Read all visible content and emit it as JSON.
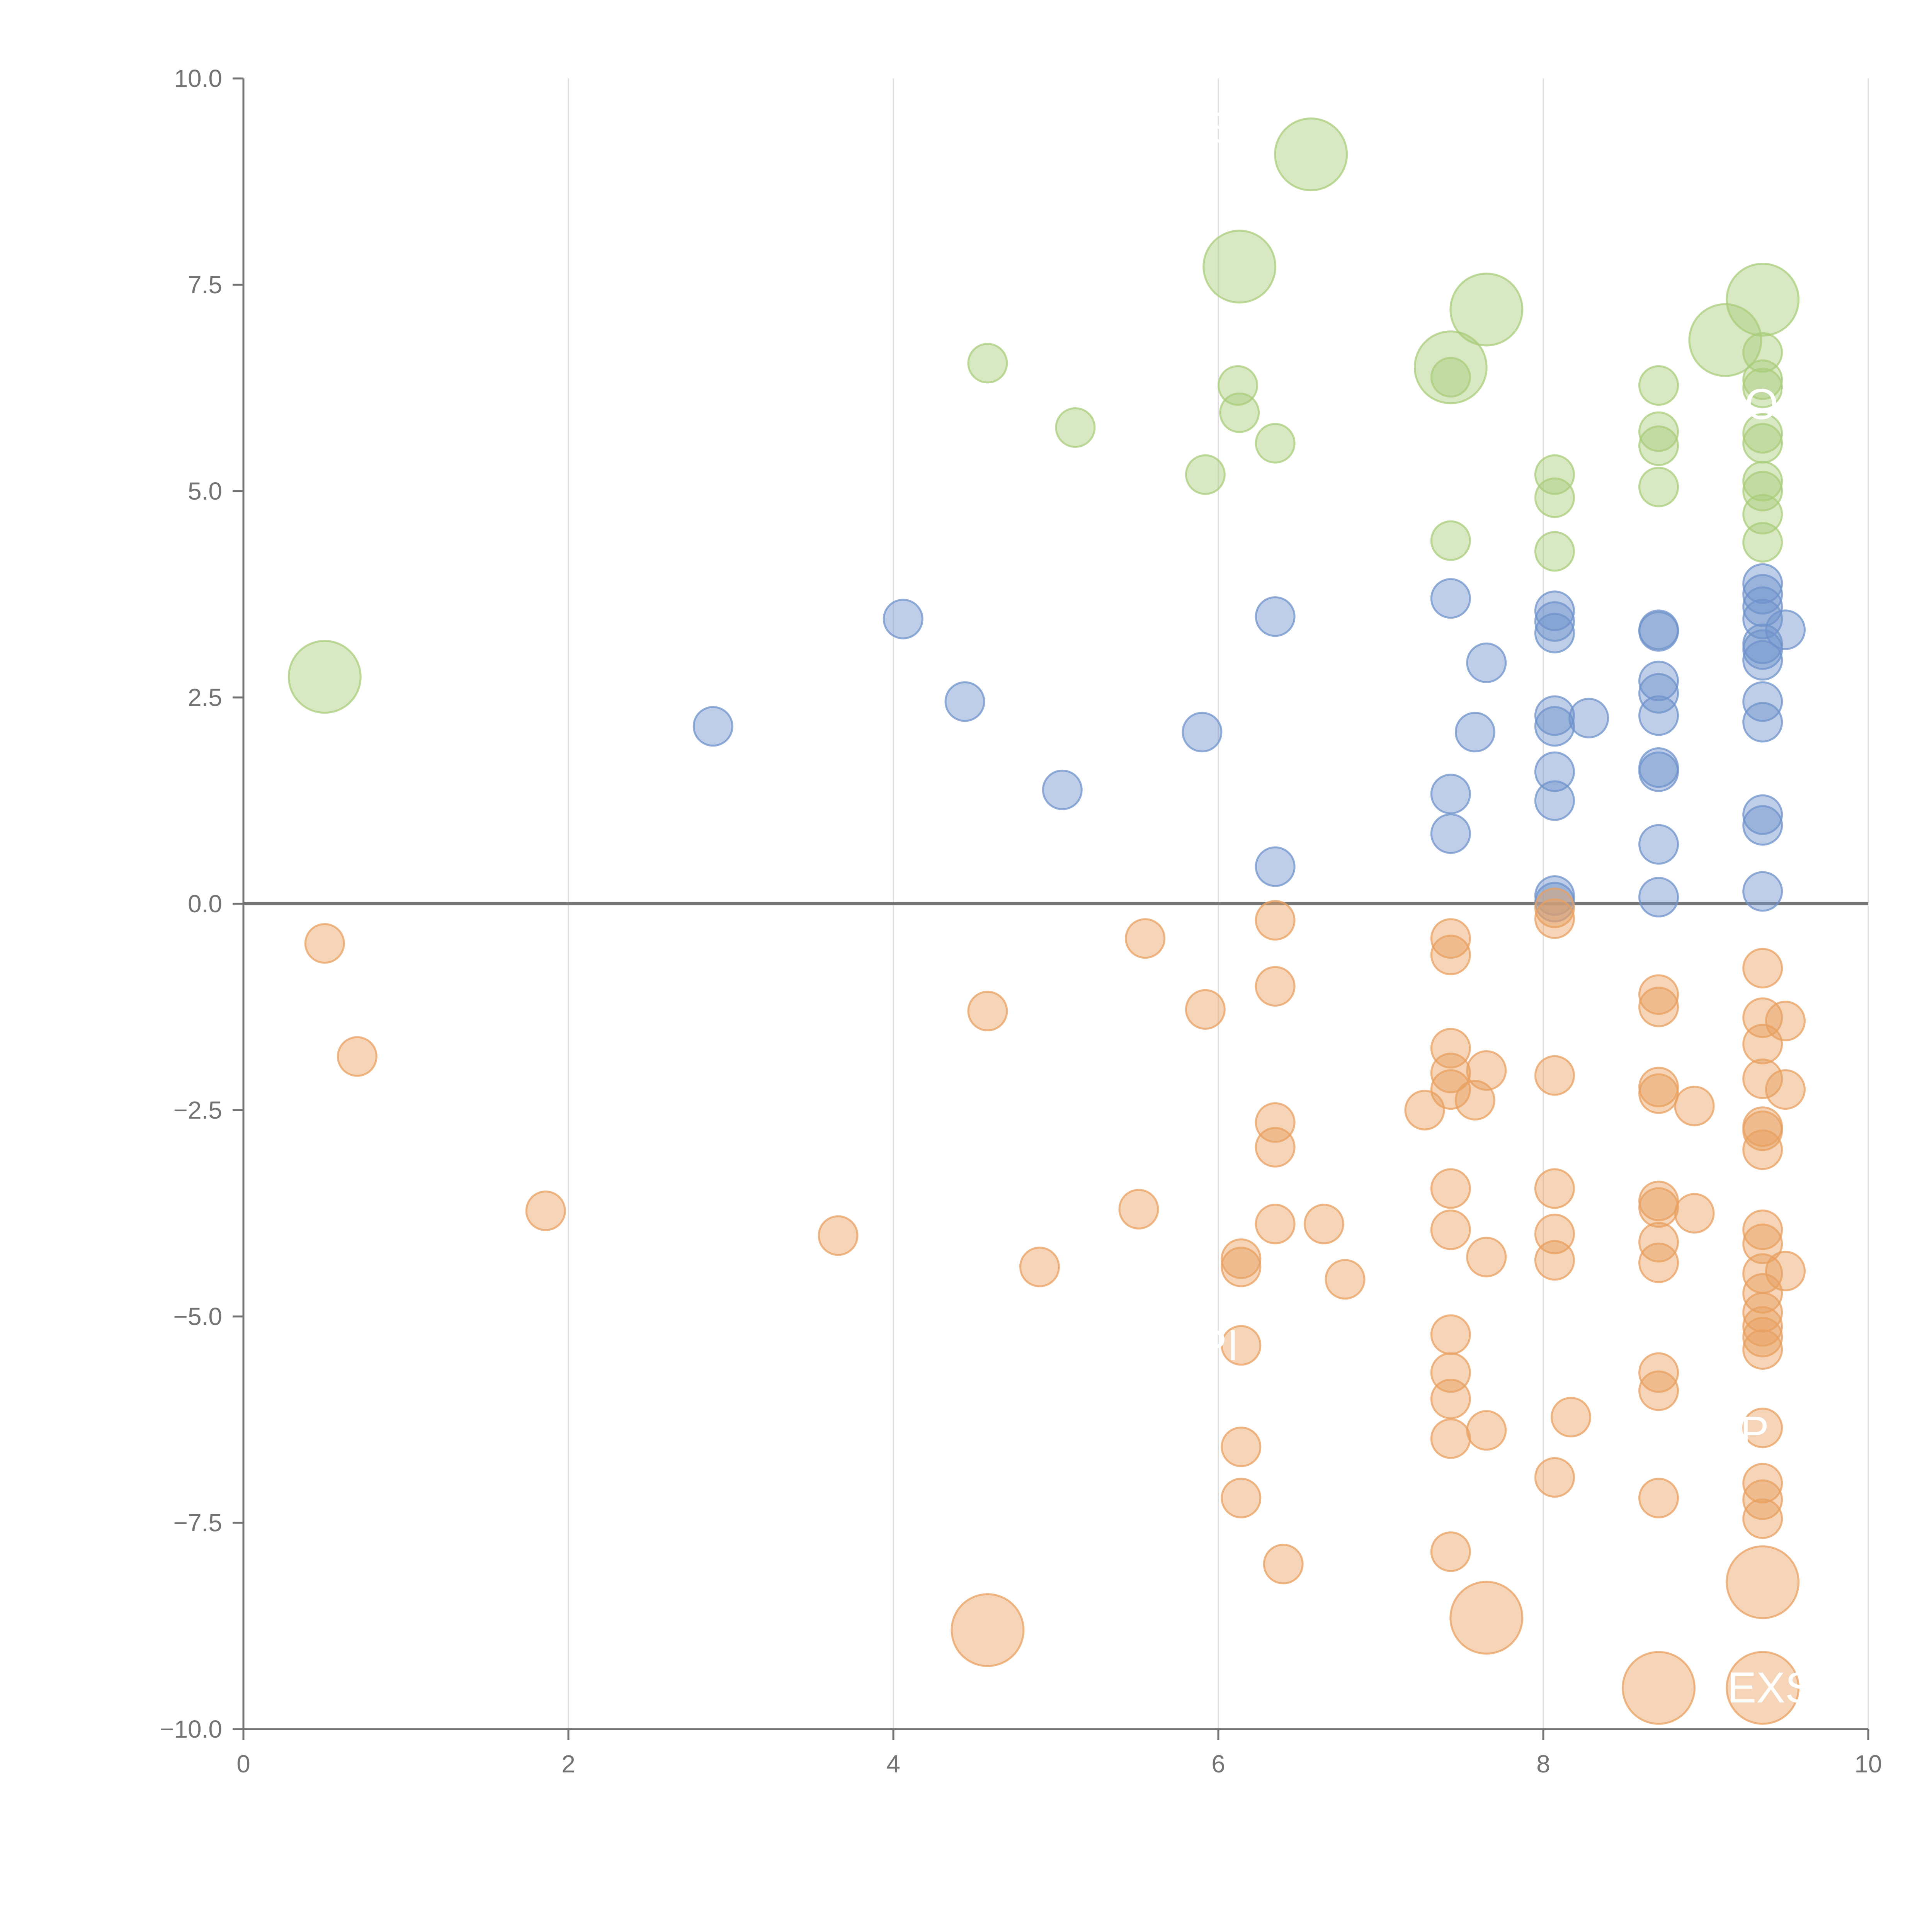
{
  "chart_data": {
    "type": "scatter",
    "title": "",
    "xlabel": "",
    "ylabel": "",
    "xlim": [
      0,
      10
    ],
    "ylim": [
      -10,
      10
    ],
    "x_ticks": [
      "0",
      "2",
      "4",
      "6",
      "8",
      "10"
    ],
    "y_ticks": [
      "−10.0",
      "−7.5",
      "−5.0",
      "−2.5",
      "0.0",
      "2.5",
      "5.0",
      "7.5",
      "10.0"
    ],
    "x_tick_values": [
      0,
      2,
      4,
      6,
      8,
      10
    ],
    "y_tick_values": [
      -10,
      -7.5,
      -5,
      -2.5,
      0,
      2.5,
      5,
      7.5,
      10
    ],
    "grid": "vertical",
    "zero_line": true,
    "colors": {
      "green": "#a9cd7b",
      "blue": "#6f93cb",
      "orange": "#e8a060",
      "axis": "#737373",
      "grid": "#dddddd",
      "zero": "#777777"
    },
    "series": [
      {
        "name": "green",
        "color": "#a9cd7b",
        "points": [
          {
            "x": 0.5,
            "y": 2.75,
            "size": "large"
          },
          {
            "x": 6.57,
            "y": 9.08,
            "size": "large"
          },
          {
            "x": 6.13,
            "y": 7.72,
            "size": "large"
          },
          {
            "x": 7.65,
            "y": 7.2,
            "size": "large"
          },
          {
            "x": 7.43,
            "y": 6.5,
            "size": "large"
          },
          {
            "x": 9.35,
            "y": 7.32,
            "size": "large"
          },
          {
            "x": 9.12,
            "y": 6.83,
            "size": "large"
          },
          {
            "x": 4.58,
            "y": 6.55
          },
          {
            "x": 5.12,
            "y": 5.77
          },
          {
            "x": 5.92,
            "y": 5.2
          },
          {
            "x": 6.12,
            "y": 6.28
          },
          {
            "x": 6.13,
            "y": 5.95
          },
          {
            "x": 6.35,
            "y": 5.58
          },
          {
            "x": 7.43,
            "y": 6.38
          },
          {
            "x": 7.43,
            "y": 4.4
          },
          {
            "x": 8.07,
            "y": 5.2
          },
          {
            "x": 8.07,
            "y": 4.92
          },
          {
            "x": 8.07,
            "y": 4.27
          },
          {
            "x": 8.71,
            "y": 6.28
          },
          {
            "x": 8.71,
            "y": 5.72
          },
          {
            "x": 8.71,
            "y": 5.55
          },
          {
            "x": 8.71,
            "y": 5.05
          },
          {
            "x": 9.35,
            "y": 6.68
          },
          {
            "x": 9.35,
            "y": 6.35
          },
          {
            "x": 9.35,
            "y": 6.25
          },
          {
            "x": 9.35,
            "y": 5.7
          },
          {
            "x": 9.35,
            "y": 5.58
          },
          {
            "x": 9.35,
            "y": 5.12
          },
          {
            "x": 9.35,
            "y": 5.0
          },
          {
            "x": 9.35,
            "y": 4.72
          },
          {
            "x": 9.35,
            "y": 4.38
          }
        ]
      },
      {
        "name": "blue",
        "color": "#6f93cb",
        "points": [
          {
            "x": 2.89,
            "y": 2.15
          },
          {
            "x": 4.06,
            "y": 3.45
          },
          {
            "x": 4.44,
            "y": 2.45
          },
          {
            "x": 5.04,
            "y": 1.38
          },
          {
            "x": 5.9,
            "y": 2.08
          },
          {
            "x": 6.35,
            "y": 3.48
          },
          {
            "x": 6.35,
            "y": 0.45
          },
          {
            "x": 7.43,
            "y": 3.7
          },
          {
            "x": 7.43,
            "y": 1.33
          },
          {
            "x": 7.43,
            "y": 0.85
          },
          {
            "x": 7.58,
            "y": 2.08
          },
          {
            "x": 7.65,
            "y": 2.92
          },
          {
            "x": 8.07,
            "y": 3.55
          },
          {
            "x": 8.07,
            "y": 3.42
          },
          {
            "x": 8.07,
            "y": 3.28
          },
          {
            "x": 8.07,
            "y": 2.28
          },
          {
            "x": 8.07,
            "y": 2.15
          },
          {
            "x": 8.07,
            "y": 1.6
          },
          {
            "x": 8.07,
            "y": 1.25
          },
          {
            "x": 8.07,
            "y": 0.1
          },
          {
            "x": 8.07,
            "y": 0.02
          },
          {
            "x": 8.28,
            "y": 2.25
          },
          {
            "x": 8.71,
            "y": 3.32
          },
          {
            "x": 8.71,
            "y": 3.3
          },
          {
            "x": 8.71,
            "y": 2.7
          },
          {
            "x": 8.71,
            "y": 2.55
          },
          {
            "x": 8.71,
            "y": 2.28
          },
          {
            "x": 8.71,
            "y": 1.65
          },
          {
            "x": 8.71,
            "y": 1.6
          },
          {
            "x": 8.71,
            "y": 0.72
          },
          {
            "x": 8.71,
            "y": 0.08
          },
          {
            "x": 9.35,
            "y": 3.88
          },
          {
            "x": 9.35,
            "y": 3.75
          },
          {
            "x": 9.35,
            "y": 3.6
          },
          {
            "x": 9.35,
            "y": 3.45
          },
          {
            "x": 9.35,
            "y": 3.15
          },
          {
            "x": 9.35,
            "y": 3.08
          },
          {
            "x": 9.35,
            "y": 2.95
          },
          {
            "x": 9.35,
            "y": 2.45
          },
          {
            "x": 9.35,
            "y": 2.2
          },
          {
            "x": 9.35,
            "y": 1.08
          },
          {
            "x": 9.35,
            "y": 0.95
          },
          {
            "x": 9.35,
            "y": 0.15
          },
          {
            "x": 9.49,
            "y": 3.32
          }
        ]
      },
      {
        "name": "orange",
        "color": "#e8a060",
        "points": [
          {
            "x": 4.58,
            "y": -8.8,
            "size": "large"
          },
          {
            "x": 7.65,
            "y": -8.65,
            "size": "large"
          },
          {
            "x": 9.35,
            "y": -8.22,
            "size": "large"
          },
          {
            "x": 8.71,
            "y": -9.5,
            "size": "large"
          },
          {
            "x": 9.35,
            "y": -9.5,
            "size": "large"
          },
          {
            "x": 0.5,
            "y": -0.48
          },
          {
            "x": 0.7,
            "y": -1.85
          },
          {
            "x": 1.86,
            "y": -3.72
          },
          {
            "x": 3.66,
            "y": -4.02
          },
          {
            "x": 4.58,
            "y": -1.3
          },
          {
            "x": 4.9,
            "y": -4.4
          },
          {
            "x": 5.51,
            "y": -3.7
          },
          {
            "x": 5.55,
            "y": -0.42
          },
          {
            "x": 5.92,
            "y": -1.28
          },
          {
            "x": 6.14,
            "y": -4.3
          },
          {
            "x": 6.14,
            "y": -4.4
          },
          {
            "x": 6.14,
            "y": -5.35
          },
          {
            "x": 6.14,
            "y": -6.58
          },
          {
            "x": 6.14,
            "y": -7.2
          },
          {
            "x": 6.35,
            "y": -0.2
          },
          {
            "x": 6.35,
            "y": -1.0
          },
          {
            "x": 6.35,
            "y": -2.65
          },
          {
            "x": 6.35,
            "y": -2.95
          },
          {
            "x": 6.35,
            "y": -3.88
          },
          {
            "x": 6.4,
            "y": -8.0
          },
          {
            "x": 6.65,
            "y": -3.88
          },
          {
            "x": 6.78,
            "y": -4.55
          },
          {
            "x": 7.27,
            "y": -2.5
          },
          {
            "x": 7.43,
            "y": -0.42
          },
          {
            "x": 7.43,
            "y": -0.62
          },
          {
            "x": 7.43,
            "y": -1.75
          },
          {
            "x": 7.43,
            "y": -2.05
          },
          {
            "x": 7.43,
            "y": -2.25
          },
          {
            "x": 7.43,
            "y": -3.45
          },
          {
            "x": 7.43,
            "y": -3.95
          },
          {
            "x": 7.43,
            "y": -5.22
          },
          {
            "x": 7.43,
            "y": -5.68
          },
          {
            "x": 7.43,
            "y": -6.0
          },
          {
            "x": 7.43,
            "y": -6.48
          },
          {
            "x": 7.43,
            "y": -7.85
          },
          {
            "x": 7.58,
            "y": -2.38
          },
          {
            "x": 7.65,
            "y": -2.02
          },
          {
            "x": 7.65,
            "y": -4.28
          },
          {
            "x": 7.65,
            "y": -6.38
          },
          {
            "x": 8.07,
            "y": -0.05
          },
          {
            "x": 8.07,
            "y": -0.18
          },
          {
            "x": 8.07,
            "y": -2.08
          },
          {
            "x": 8.07,
            "y": -3.45
          },
          {
            "x": 8.07,
            "y": -4.0
          },
          {
            "x": 8.07,
            "y": -4.32
          },
          {
            "x": 8.07,
            "y": -6.95
          },
          {
            "x": 8.17,
            "y": -6.22
          },
          {
            "x": 8.71,
            "y": -1.1
          },
          {
            "x": 8.71,
            "y": -1.25
          },
          {
            "x": 8.71,
            "y": -2.22
          },
          {
            "x": 8.71,
            "y": -2.3
          },
          {
            "x": 8.71,
            "y": -3.6
          },
          {
            "x": 8.71,
            "y": -3.68
          },
          {
            "x": 8.71,
            "y": -4.1
          },
          {
            "x": 8.71,
            "y": -4.35
          },
          {
            "x": 8.71,
            "y": -5.68
          },
          {
            "x": 8.71,
            "y": -5.9
          },
          {
            "x": 8.71,
            "y": -7.2
          },
          {
            "x": 8.93,
            "y": -2.45
          },
          {
            "x": 8.93,
            "y": -3.75
          },
          {
            "x": 9.35,
            "y": -0.78
          },
          {
            "x": 9.35,
            "y": -1.38
          },
          {
            "x": 9.35,
            "y": -1.7
          },
          {
            "x": 9.35,
            "y": -2.12
          },
          {
            "x": 9.35,
            "y": -2.7
          },
          {
            "x": 9.35,
            "y": -2.75
          },
          {
            "x": 9.35,
            "y": -2.98
          },
          {
            "x": 9.35,
            "y": -3.95
          },
          {
            "x": 9.35,
            "y": -4.12
          },
          {
            "x": 9.35,
            "y": -4.48
          },
          {
            "x": 9.35,
            "y": -4.72
          },
          {
            "x": 9.35,
            "y": -4.95
          },
          {
            "x": 9.35,
            "y": -5.12
          },
          {
            "x": 9.35,
            "y": -5.25
          },
          {
            "x": 9.35,
            "y": -5.4
          },
          {
            "x": 9.35,
            "y": -6.35
          },
          {
            "x": 9.35,
            "y": -7.02
          },
          {
            "x": 9.35,
            "y": -7.22
          },
          {
            "x": 9.35,
            "y": -7.45
          },
          {
            "x": 9.49,
            "y": -1.42
          },
          {
            "x": 9.49,
            "y": -2.25
          },
          {
            "x": 9.49,
            "y": -4.45
          }
        ]
      }
    ],
    "annotations": [
      {
        "text": "E",
        "x": 6.0,
        "y": 9.4
      },
      {
        "text": "OI",
        "x": 9.38,
        "y": 6.05
      },
      {
        "text": "PI",
        "x": 6.0,
        "y": -5.35
      },
      {
        "text": "P",
        "x": 9.3,
        "y": -6.4
      },
      {
        "text": "EXS",
        "x": 9.4,
        "y": -9.5
      }
    ]
  }
}
